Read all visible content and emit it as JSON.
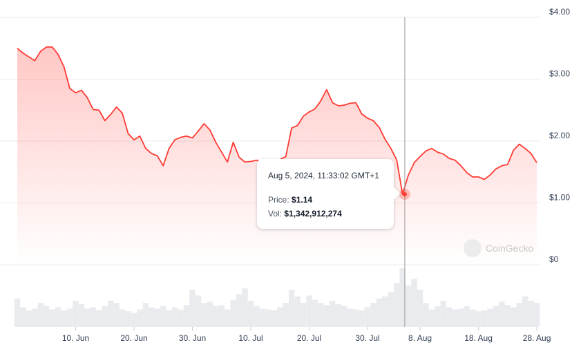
{
  "chart_data": {
    "type": "line",
    "title": "",
    "xlabel": "",
    "ylabel": "",
    "x_start": "2024-05-31",
    "x_end": "2024-08-28",
    "x_step": "1 day",
    "ylim": [
      0,
      4
    ],
    "y_ticks": [
      "$0",
      "$1.00",
      "$2.00",
      "$3.00",
      "$4.00"
    ],
    "x_ticks": [
      "10. Jun",
      "20. Jun",
      "30. Jun",
      "10. Jul",
      "20. Jul",
      "30. Jul",
      "8. Aug",
      "18. Aug",
      "28. Aug"
    ],
    "x_tick_dates": [
      "2024-06-10",
      "2024-06-20",
      "2024-06-30",
      "2024-07-10",
      "2024-07-20",
      "2024-07-30",
      "2024-08-08",
      "2024-08-18",
      "2024-08-28"
    ],
    "grid": true,
    "series": [
      {
        "type": "line",
        "color": "#ff3a33",
        "values": [
          3.5,
          3.42,
          3.36,
          3.3,
          3.45,
          3.52,
          3.52,
          3.4,
          3.2,
          2.85,
          2.78,
          2.82,
          2.7,
          2.51,
          2.5,
          2.33,
          2.43,
          2.55,
          2.45,
          2.12,
          2.02,
          2.08,
          1.88,
          1.8,
          1.76,
          1.6,
          1.88,
          2.02,
          2.06,
          2.08,
          2.05,
          2.16,
          2.28,
          2.18,
          1.98,
          1.82,
          1.66,
          1.98,
          1.74,
          1.66,
          1.67,
          1.69,
          1.65,
          1.62,
          1.67,
          1.7,
          1.75,
          2.21,
          2.25,
          2.4,
          2.47,
          2.52,
          2.65,
          2.83,
          2.62,
          2.57,
          2.58,
          2.61,
          2.62,
          2.44,
          2.37,
          2.33,
          2.22,
          2.03,
          1.88,
          1.69,
          1.14,
          1.45,
          1.65,
          1.75,
          1.84,
          1.88,
          1.82,
          1.79,
          1.72,
          1.69,
          1.6,
          1.49,
          1.42,
          1.42,
          1.38,
          1.45,
          1.55,
          1.6,
          1.62,
          1.85,
          1.95,
          1.88,
          1.8,
          1.65
        ]
      },
      {
        "type": "bar",
        "color": "#e5e7eb",
        "values_usd_billions": [
          0.65,
          0.45,
          0.38,
          0.42,
          0.55,
          0.48,
          0.4,
          0.45,
          0.38,
          0.42,
          0.6,
          0.52,
          0.42,
          0.45,
          0.38,
          0.48,
          0.6,
          0.55,
          0.4,
          0.36,
          0.32,
          0.4,
          0.55,
          0.45,
          0.42,
          0.48,
          0.38,
          0.45,
          0.4,
          0.5,
          0.85,
          0.72,
          0.55,
          0.58,
          0.48,
          0.5,
          0.4,
          0.62,
          0.75,
          0.88,
          0.6,
          0.48,
          0.42,
          0.4,
          0.38,
          0.45,
          0.55,
          0.85,
          0.7,
          0.55,
          0.72,
          0.62,
          0.55,
          0.5,
          0.6,
          0.52,
          0.48,
          0.42,
          0.4,
          0.38,
          0.45,
          0.55,
          0.65,
          0.7,
          0.8,
          1.0,
          1.34,
          0.95,
          1.1,
          0.85,
          0.55,
          0.4,
          0.48,
          0.6,
          0.45,
          0.4,
          0.42,
          0.48,
          0.4,
          0.36,
          0.38,
          0.42,
          0.48,
          0.58,
          0.5,
          0.45,
          0.55,
          0.7,
          0.6,
          0.55
        ]
      }
    ],
    "hover": {
      "index": 66,
      "date": "Aug 5, 2024, 11:33:02 GMT+1",
      "price": "$1.14",
      "volume": "$1,342,912,274"
    }
  },
  "tooltip": {
    "date": "Aug 5, 2024, 11:33:02 GMT+1",
    "price_label": "Price:",
    "price_value": "$1.14",
    "vol_label": "Vol:",
    "vol_value": "$1,342,912,274"
  },
  "watermark": "CoinGecko"
}
